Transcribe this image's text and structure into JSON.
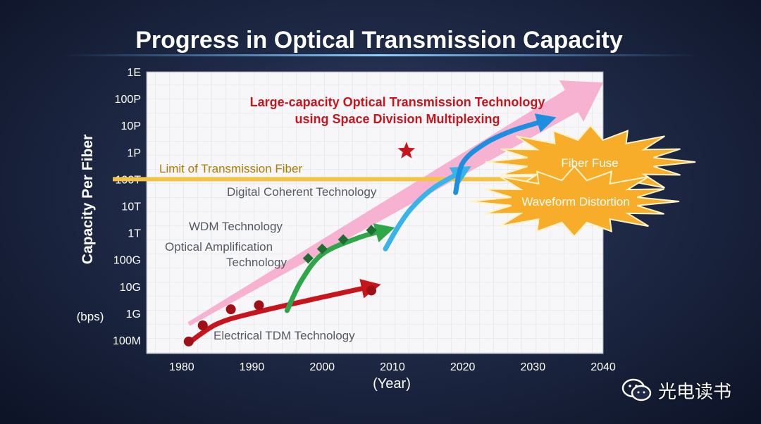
{
  "chart_data": {
    "type": "line",
    "title": "Progress in Optical Transmission Capacity",
    "xlabel": "(Year)",
    "ylabel": "Capacity Per Fiber",
    "yunit": "(bps)",
    "x_range": [
      1975,
      2040
    ],
    "y_range_log10": [
      7.5,
      18
    ],
    "x_ticks": [
      1980,
      1990,
      2000,
      2010,
      2020,
      2030,
      2040
    ],
    "y_ticks": [
      {
        "label": "100M",
        "exp": 8
      },
      {
        "label": "1G",
        "exp": 9
      },
      {
        "label": "10G",
        "exp": 10
      },
      {
        "label": "100G",
        "exp": 11
      },
      {
        "label": "1T",
        "exp": 12
      },
      {
        "label": "10T",
        "exp": 13
      },
      {
        "label": "100T",
        "exp": 14
      },
      {
        "label": "1P",
        "exp": 15
      },
      {
        "label": "10P",
        "exp": 16
      },
      {
        "label": "100P",
        "exp": 17
      },
      {
        "label": "1E",
        "exp": 18
      }
    ],
    "limit_line": {
      "label": "Limit of Transmission Fiber",
      "exp": 14,
      "color": "#f5c243"
    },
    "trend": {
      "from": [
        1981,
        8.6
      ],
      "to": [
        2040,
        17.6
      ],
      "color": "#f6a8cc"
    },
    "series": [
      {
        "name": "Electrical TDM Technology",
        "color": "#c8141c",
        "curve": [
          [
            1981,
            7.9
          ],
          [
            1985,
            8.6
          ],
          [
            1990,
            9.0
          ],
          [
            2000,
            9.6
          ],
          [
            2007,
            10.0
          ]
        ],
        "points": [
          [
            1981,
            7.95
          ],
          [
            1983,
            8.55
          ],
          [
            1987,
            9.15
          ],
          [
            1991,
            9.3
          ],
          [
            2007,
            9.85
          ]
        ]
      },
      {
        "name": "Optical Amplification / WDM Technology",
        "color": "#2fa64a",
        "curve": [
          [
            1995,
            9.1
          ],
          [
            1997,
            10.2
          ],
          [
            2000,
            11.2
          ],
          [
            2005,
            11.8
          ],
          [
            2009,
            12.1
          ]
        ],
        "points": [
          [
            1998,
            11.05
          ],
          [
            2000,
            11.4
          ],
          [
            2003,
            11.75
          ],
          [
            2007,
            12.1
          ]
        ]
      },
      {
        "name": "Digital Coherent Technology",
        "color": "#38b4ea",
        "curve": [
          [
            2009,
            11.4
          ],
          [
            2011,
            12.3
          ],
          [
            2013,
            13.0
          ],
          [
            2016,
            13.7
          ],
          [
            2020,
            14.3
          ]
        ],
        "points": []
      },
      {
        "name": "Large-capacity Optical Transmission Technology using Space Division Multiplexing",
        "color": "#1e8fe0",
        "curve": [
          [
            2019,
            13.5
          ],
          [
            2020,
            14.6
          ],
          [
            2023,
            15.3
          ],
          [
            2027,
            15.8
          ],
          [
            2032,
            16.2
          ]
        ],
        "points": []
      }
    ],
    "star": {
      "x": 2012,
      "exp": 15.05,
      "color": "#c8141c"
    },
    "annotations": {
      "limit": "Limit of Transmission Fiber",
      "coherent": "Digital Coherent Technology",
      "wdm": "WDM Technology",
      "optamp1": "Optical Amplification",
      "optamp2": "Technology",
      "tdm": "Electrical TDM Technology",
      "sdm1": "Large-capacity Optical Transmission Technology",
      "sdm2": "using Space Division Multiplexing",
      "fuse": "Fiber Fuse",
      "distortion": "Waveform Distortion"
    }
  },
  "watermark": {
    "text": "光电读书",
    "icon": "wechat-icon"
  }
}
